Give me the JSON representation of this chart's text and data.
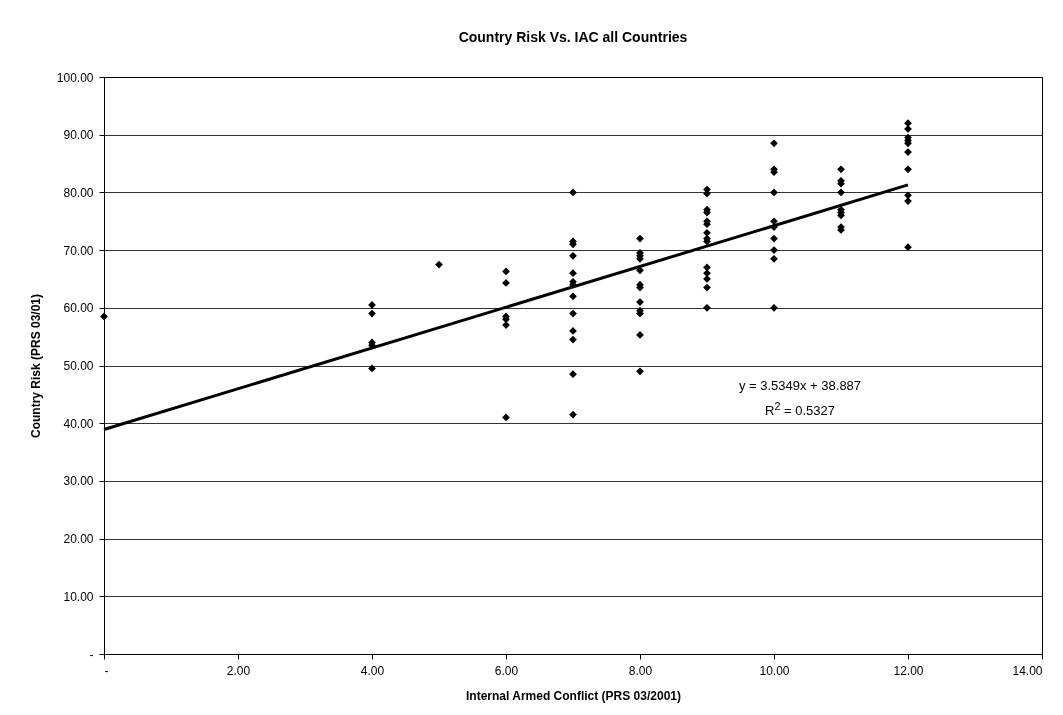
{
  "chart_data": {
    "type": "scatter",
    "title": "Country Risk Vs. IAC all Countries",
    "xlabel": "Internal Armed Conflict (PRS 03/2001)",
    "ylabel": "Country Risk (PRS 03/01)",
    "xlim": [
      0,
      14
    ],
    "ylim": [
      0,
      100
    ],
    "xticks": [
      {
        "value": 0,
        "label": "-"
      },
      {
        "value": 2,
        "label": "2.00"
      },
      {
        "value": 4,
        "label": "4.00"
      },
      {
        "value": 6,
        "label": "6.00"
      },
      {
        "value": 8,
        "label": "8.00"
      },
      {
        "value": 10,
        "label": "10.00"
      },
      {
        "value": 12,
        "label": "12.00"
      },
      {
        "value": 14,
        "label": "14.00"
      }
    ],
    "yticks": [
      {
        "value": 0,
        "label": "-"
      },
      {
        "value": 10,
        "label": "10.00"
      },
      {
        "value": 20,
        "label": "20.00"
      },
      {
        "value": 30,
        "label": "30.00"
      },
      {
        "value": 40,
        "label": "40.00"
      },
      {
        "value": 50,
        "label": "50.00"
      },
      {
        "value": 60,
        "label": "60.00"
      },
      {
        "value": 70,
        "label": "70.00"
      },
      {
        "value": 80,
        "label": "80.00"
      },
      {
        "value": 90,
        "label": "90.00"
      },
      {
        "value": 100,
        "label": "100.00"
      }
    ],
    "grid": "y",
    "annotations": [
      "y = 3.5349x + 38.887",
      "R$^{2}$ = 0.5327"
    ],
    "series": [
      {
        "color": "#000000",
        "marker": "diamond",
        "x": [
          0,
          4,
          4,
          4,
          4,
          4,
          5,
          6,
          6,
          6,
          6,
          6,
          6,
          7,
          7,
          7,
          7,
          7,
          7,
          7,
          7,
          7,
          7,
          7,
          7,
          7,
          8,
          8,
          8,
          8,
          8,
          8,
          8,
          8,
          8,
          8,
          8,
          8,
          9,
          9,
          9,
          9,
          9,
          9,
          9,
          9,
          9,
          9,
          9,
          9,
          9,
          9,
          10,
          10,
          10,
          10,
          10,
          10,
          10,
          10,
          10,
          10,
          11,
          11,
          11,
          11,
          11,
          11,
          11,
          11,
          11,
          12,
          12,
          12,
          12,
          12,
          12,
          12,
          12,
          12,
          12
        ],
        "values": [
          58.5,
          60.5,
          59,
          54,
          53.5,
          49.5,
          67.5,
          66.3,
          64.3,
          58.5,
          58,
          57,
          41,
          80,
          71.5,
          71,
          69,
          66,
          64.5,
          64,
          62,
          59,
          56,
          54.5,
          48.5,
          41.5,
          72,
          69.5,
          69,
          68.5,
          66.5,
          64,
          63.5,
          61,
          59.5,
          59,
          55.3,
          49,
          80.5,
          79.8,
          77,
          76.5,
          75,
          74.5,
          73,
          72,
          71.5,
          67,
          66,
          65,
          63.5,
          60,
          88.5,
          84,
          83.5,
          80,
          75,
          74,
          72,
          70,
          68.5,
          60,
          84,
          82,
          81.5,
          80,
          77,
          76.5,
          76,
          74,
          73.5,
          92,
          91,
          89.5,
          89,
          88.5,
          87,
          84,
          79.5,
          78.5,
          70.5
        ]
      },
      {
        "type": "line",
        "color": "#000000",
        "x": [
          0,
          12
        ],
        "values": [
          38.9,
          81.3
        ]
      }
    ]
  }
}
